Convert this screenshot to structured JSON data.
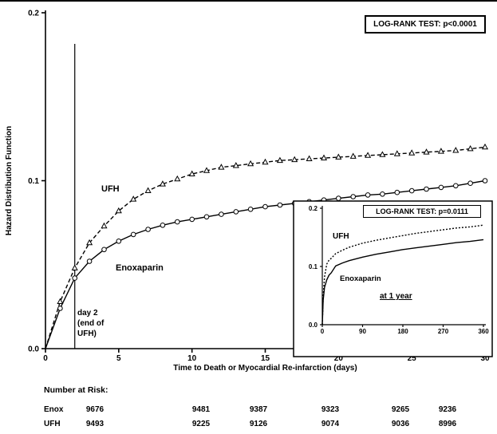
{
  "figure": {
    "background": "#ffffff",
    "ink_color": "#000000"
  },
  "chart_data": [
    {
      "type": "line",
      "name": "main",
      "title": "",
      "xlabel": "Time to Death or Myocardial Re-infarction (days)",
      "ylabel": "Hazard Distribution Function",
      "xlim": [
        0,
        30
      ],
      "ylim": [
        0,
        0.2
      ],
      "xticks": [
        0,
        5,
        10,
        15,
        20,
        25,
        30
      ],
      "xtick_labels": [
        "0",
        "5",
        "10",
        "15",
        "20",
        "25",
        "30"
      ],
      "yticks": [
        0,
        0.1,
        0.2
      ],
      "ytick_labels": [
        "0.0",
        "0.1",
        "0.2"
      ],
      "grid": false,
      "legend_position": "inline-labels",
      "annotation": "LOG-RANK TEST: p<0.0001",
      "reference_line": {
        "x": 2,
        "label": "day 2\n(end of\nUFH)"
      },
      "series": [
        {
          "name": "UFH",
          "line_style": "dashed",
          "marker": "triangle",
          "x": [
            0,
            1,
            2,
            3,
            4,
            5,
            6,
            7,
            8,
            9,
            10,
            11,
            12,
            13,
            14,
            15,
            16,
            17,
            18,
            19,
            20,
            21,
            22,
            23,
            24,
            25,
            26,
            27,
            28,
            29,
            30
          ],
          "y": [
            0,
            0.028,
            0.048,
            0.063,
            0.073,
            0.082,
            0.089,
            0.094,
            0.098,
            0.101,
            0.104,
            0.106,
            0.108,
            0.109,
            0.11,
            0.111,
            0.112,
            0.1125,
            0.113,
            0.1135,
            0.114,
            0.1145,
            0.115,
            0.1155,
            0.116,
            0.1165,
            0.117,
            0.1175,
            0.118,
            0.119,
            0.12
          ]
        },
        {
          "name": "Enoxaparin",
          "line_style": "solid",
          "marker": "circle",
          "x": [
            0,
            1,
            2,
            3,
            4,
            5,
            6,
            7,
            8,
            9,
            10,
            11,
            12,
            13,
            14,
            15,
            16,
            17,
            18,
            19,
            20,
            21,
            22,
            23,
            24,
            25,
            26,
            27,
            28,
            29,
            30
          ],
          "y": [
            0,
            0.024,
            0.042,
            0.052,
            0.059,
            0.064,
            0.068,
            0.071,
            0.0735,
            0.0755,
            0.077,
            0.0785,
            0.08,
            0.0815,
            0.083,
            0.0845,
            0.0855,
            0.0865,
            0.0875,
            0.0885,
            0.0895,
            0.0905,
            0.0915,
            0.092,
            0.093,
            0.094,
            0.095,
            0.096,
            0.097,
            0.0985,
            0.1
          ]
        }
      ]
    },
    {
      "type": "line",
      "name": "inset",
      "title": "",
      "xlabel": "",
      "ylabel": "",
      "xlim": [
        0,
        360
      ],
      "ylim": [
        0,
        0.2
      ],
      "xticks": [
        0,
        90,
        180,
        270,
        360
      ],
      "xtick_labels": [
        "0",
        "90",
        "180",
        "270",
        "360"
      ],
      "yticks": [
        0,
        0.1,
        0.2
      ],
      "ytick_labels": [
        "0.0",
        "0.1",
        "0.2"
      ],
      "grid": false,
      "annotation": "LOG-RANK TEST: p=0.0111",
      "note": "at 1 year",
      "series": [
        {
          "name": "UFH",
          "line_style": "dashed",
          "marker": "none",
          "x": [
            0,
            2,
            5,
            10,
            15,
            20,
            30,
            45,
            60,
            90,
            120,
            150,
            180,
            210,
            240,
            270,
            300,
            330,
            360
          ],
          "y": [
            0,
            0.048,
            0.082,
            0.104,
            0.111,
            0.114,
            0.122,
            0.128,
            0.133,
            0.14,
            0.145,
            0.149,
            0.153,
            0.157,
            0.16,
            0.163,
            0.166,
            0.168,
            0.171
          ]
        },
        {
          "name": "Enoxaparin",
          "line_style": "solid",
          "marker": "none",
          "x": [
            0,
            2,
            5,
            10,
            15,
            20,
            30,
            45,
            60,
            90,
            120,
            150,
            180,
            210,
            240,
            270,
            300,
            330,
            360
          ],
          "y": [
            0,
            0.042,
            0.064,
            0.077,
            0.085,
            0.089,
            0.101,
            0.106,
            0.11,
            0.116,
            0.121,
            0.125,
            0.129,
            0.132,
            0.135,
            0.138,
            0.141,
            0.143,
            0.146
          ]
        }
      ]
    }
  ],
  "number_at_risk": {
    "title": "Number at Risk:",
    "rows": [
      {
        "label": "Enox",
        "values": [
          "9676",
          "9481",
          "9387",
          "9323",
          "9265",
          "9236"
        ]
      },
      {
        "label": "UFH",
        "values": [
          "9493",
          "9225",
          "9126",
          "9074",
          "9036",
          "8996"
        ]
      }
    ]
  }
}
